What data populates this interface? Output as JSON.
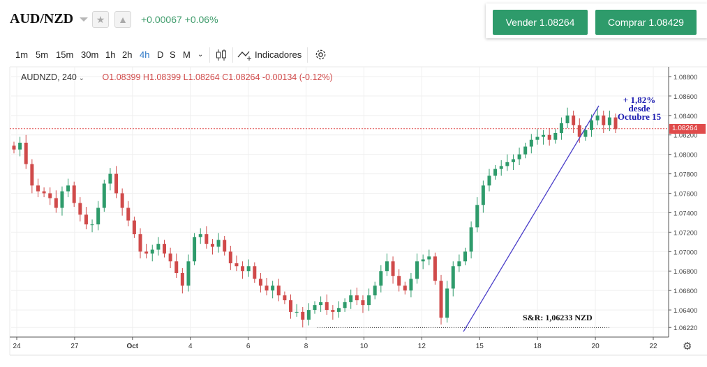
{
  "header": {
    "symbol": "AUD/NZD",
    "change": "+0.00067  +0.06%",
    "sell_label": "Vender 1.08264",
    "buy_label": "Comprar 1.08429",
    "colors": {
      "up": "#2e9b6b",
      "down": "#d04a4a"
    }
  },
  "toolbar": {
    "timeframes": [
      "1m",
      "5m",
      "15m",
      "30m",
      "1h",
      "2h",
      "4h",
      "D",
      "S",
      "M"
    ],
    "active": "4h",
    "indicators_label": "Indicadores"
  },
  "legend": {
    "symbol": "AUDNZD, 240",
    "ohlc": "O1.08399  H1.08399  L1.08264  C1.08264  -0.00134 (-0.12%)"
  },
  "annotations": {
    "gain_line1": "+ 1,82%",
    "gain_line2": "desde",
    "gain_line3": "Octubre 15",
    "sr_label": "S&R: 1,06233 NZD"
  },
  "chart_data": {
    "type": "candlestick",
    "pair": "AUDNZD",
    "interval": "240",
    "y_ticks": [
      1.0622,
      1.064,
      1.066,
      1.068,
      1.07,
      1.072,
      1.074,
      1.076,
      1.078,
      1.08,
      1.082,
      1.084,
      1.086,
      1.088
    ],
    "ylim": [
      1.0615,
      1.089
    ],
    "x_labels": [
      "24",
      "27",
      "Oct",
      "4",
      "6",
      "8",
      "10",
      "12",
      "15",
      "18",
      "20",
      "22"
    ],
    "last_price": "1.08264",
    "last_price_value": 1.08264,
    "support_level": 1.06233,
    "trendline": {
      "from": [
        14.8,
        1.0622
      ],
      "to": [
        20.1,
        1.085
      ]
    },
    "close_path": [
      [
        0,
        1.0805
      ],
      [
        1,
        1.0812
      ],
      [
        2,
        1.079
      ],
      [
        3,
        1.0768
      ],
      [
        4,
        1.0762
      ],
      [
        5,
        1.076
      ],
      [
        6,
        1.0755
      ],
      [
        7,
        1.0745
      ],
      [
        8,
        1.0762
      ],
      [
        9,
        1.0768
      ],
      [
        10,
        1.075
      ],
      [
        11,
        1.0738
      ],
      [
        12,
        1.0728
      ],
      [
        13,
        1.0728
      ],
      [
        14,
        1.0745
      ],
      [
        15,
        1.077
      ],
      [
        16,
        1.078
      ],
      [
        17,
        1.076
      ],
      [
        18,
        1.0745
      ],
      [
        19,
        1.0732
      ],
      [
        20,
        1.0718
      ],
      [
        21,
        1.07
      ],
      [
        22,
        1.0698
      ],
      [
        23,
        1.0702
      ],
      [
        24,
        1.0708
      ],
      [
        25,
        1.0698
      ],
      [
        26,
        1.069
      ],
      [
        27,
        1.0678
      ],
      [
        28,
        1.0665
      ],
      [
        29,
        1.069
      ],
      [
        30,
        1.0715
      ],
      [
        31,
        1.0718
      ],
      [
        32,
        1.0708
      ],
      [
        33,
        1.0705
      ],
      [
        34,
        1.0712
      ],
      [
        35,
        1.07
      ],
      [
        36,
        1.0688
      ],
      [
        37,
        1.0685
      ],
      [
        38,
        1.068
      ],
      [
        39,
        1.0685
      ],
      [
        40,
        1.0672
      ],
      [
        41,
        1.0665
      ],
      [
        42,
        1.066
      ],
      [
        43,
        1.0665
      ],
      [
        44,
        1.0655
      ],
      [
        45,
        1.065
      ],
      [
        46,
        1.0638
      ],
      [
        47,
        1.0638
      ],
      [
        48,
        1.063
      ],
      [
        49,
        1.064
      ],
      [
        50,
        1.0645
      ],
      [
        51,
        1.0648
      ],
      [
        52,
        1.064
      ],
      [
        53,
        1.0638
      ],
      [
        54,
        1.0642
      ],
      [
        55,
        1.0648
      ],
      [
        56,
        1.0655
      ],
      [
        57,
        1.065
      ],
      [
        58,
        1.0645
      ],
      [
        59,
        1.0655
      ],
      [
        60,
        1.0665
      ],
      [
        61,
        1.068
      ],
      [
        62,
        1.069
      ],
      [
        63,
        1.0675
      ],
      [
        64,
        1.0665
      ],
      [
        65,
        1.066
      ],
      [
        66,
        1.0672
      ],
      [
        67,
        1.069
      ],
      [
        68,
        1.0692
      ],
      [
        69,
        1.0695
      ],
      [
        70,
        1.067
      ],
      [
        71,
        1.0632
      ],
      [
        72,
        1.0662
      ],
      [
        73,
        1.0685
      ],
      [
        74,
        1.069
      ],
      [
        75,
        1.07
      ],
      [
        76,
        1.0725
      ],
      [
        77,
        1.0748
      ],
      [
        78,
        1.0768
      ],
      [
        79,
        1.0778
      ],
      [
        80,
        1.0785
      ],
      [
        81,
        1.0788
      ],
      [
        82,
        1.0792
      ],
      [
        83,
        1.0795
      ],
      [
        84,
        1.08
      ],
      [
        85,
        1.0808
      ],
      [
        86,
        1.0815
      ],
      [
        87,
        1.0818
      ],
      [
        88,
        1.082
      ],
      [
        89,
        1.0815
      ],
      [
        90,
        1.0822
      ],
      [
        91,
        1.0832
      ],
      [
        92,
        1.084
      ],
      [
        93,
        1.083
      ],
      [
        94,
        1.0818
      ],
      [
        95,
        1.0825
      ],
      [
        96,
        1.0835
      ],
      [
        97,
        1.084
      ],
      [
        98,
        1.083
      ],
      [
        99,
        1.0838
      ],
      [
        100,
        1.0826
      ]
    ]
  }
}
